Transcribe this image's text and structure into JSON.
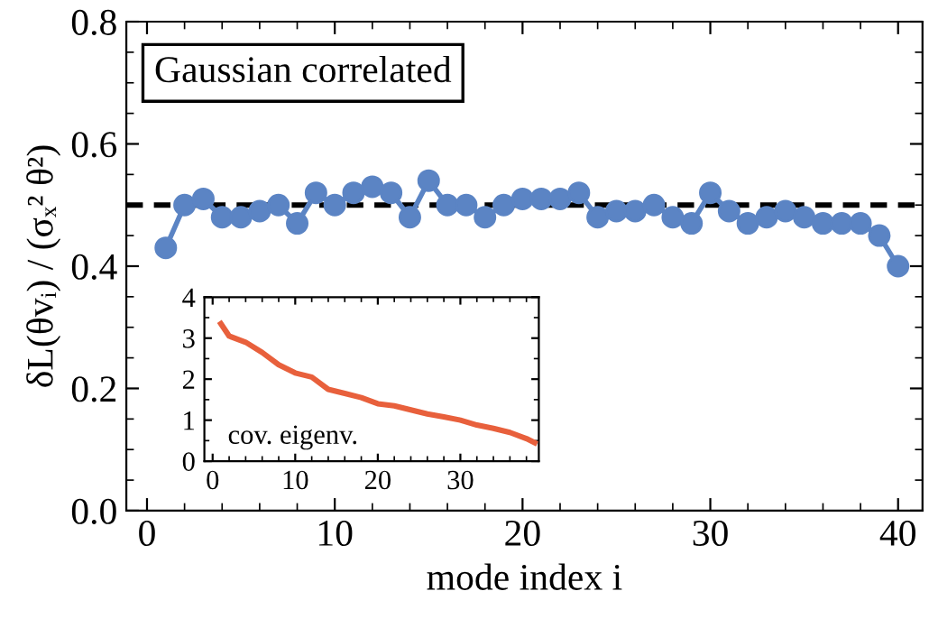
{
  "chart_data": [
    {
      "type": "line",
      "xlabel": "mode index i",
      "ylabel": "δL(θvᵢ) / (σₓ² θ²)",
      "annotations": [
        "Gaussian correlated"
      ],
      "x": [
        1,
        2,
        3,
        4,
        5,
        6,
        7,
        8,
        9,
        10,
        11,
        12,
        13,
        14,
        15,
        16,
        17,
        18,
        19,
        20,
        21,
        22,
        23,
        24,
        25,
        26,
        27,
        28,
        29,
        30,
        31,
        32,
        33,
        34,
        35,
        36,
        37,
        38,
        39,
        40
      ],
      "series": [
        {
          "color": "#5b84c4",
          "values": [
            0.43,
            0.5,
            0.51,
            0.48,
            0.48,
            0.49,
            0.5,
            0.47,
            0.52,
            0.5,
            0.52,
            0.53,
            0.52,
            0.48,
            0.54,
            0.5,
            0.5,
            0.48,
            0.5,
            0.51,
            0.51,
            0.51,
            0.52,
            0.48,
            0.49,
            0.49,
            0.5,
            0.48,
            0.47,
            0.52,
            0.49,
            0.47,
            0.48,
            0.49,
            0.48,
            0.47,
            0.47,
            0.47,
            0.45,
            0.4
          ]
        }
      ],
      "marker": "circle",
      "line_style": "solid",
      "grid": false,
      "legend": false,
      "ref_lines": [
        {
          "axis": "y",
          "value": 0.5,
          "color": "#000000",
          "line_style": "dashed"
        }
      ],
      "xlim": [
        -1.1,
        41.3
      ],
      "ylim": [
        0,
        0.8
      ],
      "xticks": [
        0,
        10,
        20,
        30,
        40
      ],
      "yticks": [
        {
          "value": 0,
          "label": "0.0"
        },
        {
          "value": 0.2,
          "label": "0.2"
        },
        {
          "value": 0.4,
          "label": "0.4"
        },
        {
          "value": 0.6,
          "label": "0.6"
        },
        {
          "value": 0.8,
          "label": "0.8"
        }
      ]
    },
    {
      "type": "line",
      "annotations": [
        "cov. eigenv."
      ],
      "x": [
        1,
        2,
        4,
        6,
        8,
        10,
        12,
        14,
        16,
        18,
        20,
        22,
        24,
        26,
        28,
        30,
        32,
        34,
        36,
        38,
        39
      ],
      "series": [
        {
          "color": "#e8603c",
          "values": [
            3.35,
            3.05,
            2.9,
            2.65,
            2.35,
            2.15,
            2.05,
            1.75,
            1.65,
            1.55,
            1.4,
            1.35,
            1.25,
            1.15,
            1.08,
            1.0,
            0.88,
            0.8,
            0.7,
            0.55,
            0.45
          ]
        }
      ],
      "marker": "none",
      "line_style": "solid",
      "grid": false,
      "legend": false,
      "xlim": [
        -1,
        39.5
      ],
      "ylim": [
        0,
        4
      ],
      "xticks": [
        0,
        10,
        20,
        30
      ],
      "yticks": [
        0,
        1,
        2,
        3,
        4
      ]
    }
  ]
}
